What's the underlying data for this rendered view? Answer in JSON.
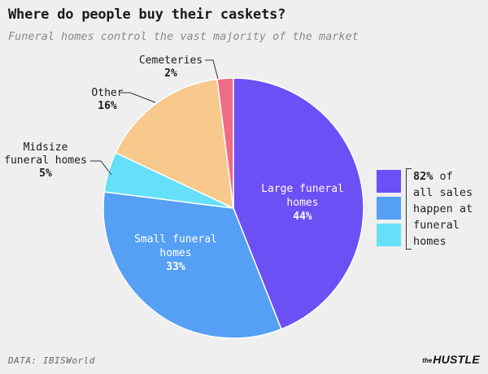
{
  "title": "Where do people buy their caskets?",
  "subtitle": "Funeral homes control the vast majority of the market",
  "source": "DATA: IBISWorld",
  "logo": {
    "the": "the",
    "brand": "HUSTLE"
  },
  "callout": {
    "highlight": "82%",
    "rest": [
      " of",
      "all sales",
      "happen at",
      "funeral",
      "homes"
    ],
    "colors": [
      "#6c4ff5",
      "#55a0f5",
      "#66e0f8"
    ]
  },
  "chart_data": {
    "type": "pie",
    "title": "Where do people buy their caskets?",
    "subtitle": "Funeral homes control the vast majority of the market",
    "slices": [
      {
        "label": "Large funeral homes",
        "value": 44,
        "value_label": "44%",
        "color": "#6c4ff5"
      },
      {
        "label": "Small funeral homes",
        "value": 33,
        "value_label": "33%",
        "color": "#55a0f5"
      },
      {
        "label": "Midsize funeral homes",
        "value": 5,
        "value_label": "5%",
        "color": "#66e0f8"
      },
      {
        "label": "Other",
        "value": 16,
        "value_label": "16%",
        "color": "#f8c98c"
      },
      {
        "label": "Cemeteries",
        "value": 2,
        "value_label": "2%",
        "color": "#f06b85"
      }
    ]
  }
}
